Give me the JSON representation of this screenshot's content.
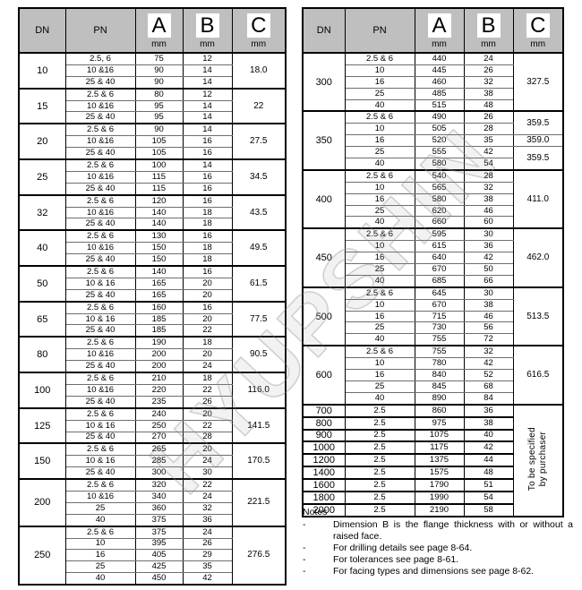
{
  "watermark": "HYUPSHIN",
  "columns": {
    "dn": "DN",
    "pn": "PN",
    "a": "A",
    "b": "B",
    "c": "C",
    "unit": "mm"
  },
  "tables": [
    {
      "name": "left",
      "groups": [
        {
          "dn": "10",
          "rows": [
            [
              "2.5, 6",
              "75",
              "12"
            ],
            [
              "10 &16",
              "90",
              "14"
            ],
            [
              "25 & 40",
              "90",
              "14"
            ]
          ],
          "c": [
            {
              "span": 3,
              "text": "18.0"
            }
          ]
        },
        {
          "dn": "15",
          "rows": [
            [
              "2.5 & 6",
              "80",
              "12"
            ],
            [
              "10 &16",
              "95",
              "14"
            ],
            [
              "25 & 40",
              "95",
              "14"
            ]
          ],
          "c": [
            {
              "span": 3,
              "text": "22"
            }
          ]
        },
        {
          "dn": "20",
          "rows": [
            [
              "2.5 & 6",
              "90",
              "14"
            ],
            [
              "10 &16",
              "105",
              "16"
            ],
            [
              "25 & 40",
              "105",
              "16"
            ]
          ],
          "c": [
            {
              "span": 3,
              "text": "27.5"
            }
          ]
        },
        {
          "dn": "25",
          "rows": [
            [
              "2.5 & 6",
              "100",
              "14"
            ],
            [
              "10 &16",
              "115",
              "16"
            ],
            [
              "25 & 40",
              "115",
              "16"
            ]
          ],
          "c": [
            {
              "span": 3,
              "text": "34.5"
            }
          ]
        },
        {
          "dn": "32",
          "rows": [
            [
              "2.5 & 6",
              "120",
              "16"
            ],
            [
              "10 &16",
              "140",
              "18"
            ],
            [
              "25 & 40",
              "140",
              "18"
            ]
          ],
          "c": [
            {
              "span": 3,
              "text": "43.5"
            }
          ]
        },
        {
          "dn": "40",
          "rows": [
            [
              "2.5 & 6",
              "130",
              "16"
            ],
            [
              "10 &16",
              "150",
              "18"
            ],
            [
              "25 & 40",
              "150",
              "18"
            ]
          ],
          "c": [
            {
              "span": 3,
              "text": "49.5"
            }
          ]
        },
        {
          "dn": "50",
          "rows": [
            [
              "2.5 & 6",
              "140",
              "16"
            ],
            [
              "10 & 16",
              "165",
              "20"
            ],
            [
              "25 & 40",
              "165",
              "20"
            ]
          ],
          "c": [
            {
              "span": 3,
              "text": "61.5"
            }
          ]
        },
        {
          "dn": "65",
          "rows": [
            [
              "2.5 & 6",
              "160",
              "16"
            ],
            [
              "10 & 16",
              "185",
              "20"
            ],
            [
              "25 & 40",
              "185",
              "22"
            ]
          ],
          "c": [
            {
              "span": 3,
              "text": "77.5"
            }
          ]
        },
        {
          "dn": "80",
          "rows": [
            [
              "2.5 & 6",
              "190",
              "18"
            ],
            [
              "10 &16",
              "200",
              "20"
            ],
            [
              "25 & 40",
              "200",
              "24"
            ]
          ],
          "c": [
            {
              "span": 3,
              "text": "90.5"
            }
          ]
        },
        {
          "dn": "100",
          "rows": [
            [
              "2.5 & 6",
              "210",
              "18"
            ],
            [
              "10 &16",
              "220",
              "22"
            ],
            [
              "25 & 40",
              "235",
              "26"
            ]
          ],
          "c": [
            {
              "span": 3,
              "text": "116.0"
            }
          ]
        },
        {
          "dn": "125",
          "rows": [
            [
              "2.5 & 6",
              "240",
              "20"
            ],
            [
              "10 & 16",
              "250",
              "22"
            ],
            [
              "25 & 40",
              "270",
              "28"
            ]
          ],
          "c": [
            {
              "span": 3,
              "text": "141.5"
            }
          ]
        },
        {
          "dn": "150",
          "rows": [
            [
              "2.5 & 6",
              "265",
              "20"
            ],
            [
              "10 & 16",
              "285",
              "24"
            ],
            [
              "25 & 40",
              "300",
              "30"
            ]
          ],
          "c": [
            {
              "span": 3,
              "text": "170.5"
            }
          ]
        },
        {
          "dn": "200",
          "rows": [
            [
              "2.5 & 6",
              "320",
              "22"
            ],
            [
              "10 &16",
              "340",
              "24"
            ],
            [
              "25",
              "360",
              "32"
            ],
            [
              "40",
              "375",
              "36"
            ]
          ],
          "c": [
            {
              "span": 4,
              "text": "221.5"
            }
          ]
        },
        {
          "dn": "250",
          "rows": [
            [
              "2.5 & 6",
              "375",
              "24"
            ],
            [
              "10",
              "395",
              "26"
            ],
            [
              "16",
              "405",
              "29"
            ],
            [
              "25",
              "425",
              "35"
            ],
            [
              "40",
              "450",
              "42"
            ]
          ],
          "c": [
            {
              "span": 5,
              "text": "276.5"
            }
          ]
        }
      ]
    },
    {
      "name": "right",
      "groups": [
        {
          "dn": "300",
          "rows": [
            [
              "2.5 & 6",
              "440",
              "24"
            ],
            [
              "10",
              "445",
              "26"
            ],
            [
              "16",
              "460",
              "32"
            ],
            [
              "25",
              "485",
              "38"
            ],
            [
              "40",
              "515",
              "48"
            ]
          ],
          "c": [
            {
              "span": 5,
              "text": "327.5"
            }
          ]
        },
        {
          "dn": "350",
          "rows": [
            [
              "2.5 & 6",
              "490",
              "26"
            ],
            [
              "10",
              "505",
              "28"
            ],
            [
              "16",
              "520",
              "35"
            ],
            [
              "25",
              "555",
              "42"
            ],
            [
              "40",
              "580",
              "54"
            ]
          ],
          "c": [
            {
              "span": 2,
              "text": "359.5"
            },
            {
              "span": 1,
              "text": "359.0"
            },
            {
              "span": 2,
              "text": "359.5"
            }
          ]
        },
        {
          "dn": "400",
          "rows": [
            [
              "2.5 & 6",
              "540",
              "28"
            ],
            [
              "10",
              "565",
              "32"
            ],
            [
              "16",
              "580",
              "38"
            ],
            [
              "25",
              "620",
              "46"
            ],
            [
              "40",
              "660",
              "60"
            ]
          ],
          "c": [
            {
              "span": 5,
              "text": "411.0"
            }
          ]
        },
        {
          "dn": "450",
          "rows": [
            [
              "2.5 & 6",
              "595",
              "30"
            ],
            [
              "10",
              "615",
              "36"
            ],
            [
              "16",
              "640",
              "42"
            ],
            [
              "25",
              "670",
              "50"
            ],
            [
              "40",
              "685",
              "66"
            ]
          ],
          "c": [
            {
              "span": 5,
              "text": "462.0"
            }
          ]
        },
        {
          "dn": "500",
          "rows": [
            [
              "2.5 & 6",
              "645",
              "30"
            ],
            [
              "10",
              "670",
              "38"
            ],
            [
              "16",
              "715",
              "46"
            ],
            [
              "25",
              "730",
              "56"
            ],
            [
              "40",
              "755",
              "72"
            ]
          ],
          "c": [
            {
              "span": 5,
              "text": "513.5"
            }
          ]
        },
        {
          "dn": "600",
          "rows": [
            [
              "2.5 & 6",
              "755",
              "32"
            ],
            [
              "10",
              "780",
              "42"
            ],
            [
              "16",
              "840",
              "52"
            ],
            [
              "25",
              "845",
              "68"
            ],
            [
              "40",
              "890",
              "84"
            ]
          ],
          "c": [
            {
              "span": 5,
              "text": "616.5"
            }
          ]
        },
        {
          "dn": "700",
          "rows": [
            [
              "2.5",
              "860",
              "36"
            ]
          ],
          "c": [
            {
              "span": 9,
              "text": "To be specified\nby purchaser",
              "rotated": true
            }
          ]
        },
        {
          "dn": "800",
          "rows": [
            [
              "2.5",
              "975",
              "38"
            ]
          ]
        },
        {
          "dn": "900",
          "rows": [
            [
              "2.5",
              "1075",
              "40"
            ]
          ]
        },
        {
          "dn": "1000",
          "rows": [
            [
              "2.5",
              "1175",
              "42"
            ]
          ]
        },
        {
          "dn": "1200",
          "rows": [
            [
              "2.5",
              "1375",
              "44"
            ]
          ]
        },
        {
          "dn": "1400",
          "rows": [
            [
              "2.5",
              "1575",
              "48"
            ]
          ]
        },
        {
          "dn": "1600",
          "rows": [
            [
              "2.5",
              "1790",
              "51"
            ]
          ]
        },
        {
          "dn": "1800",
          "rows": [
            [
              "2.5",
              "1990",
              "54"
            ]
          ]
        },
        {
          "dn": "2000",
          "rows": [
            [
              "2.5",
              "2190",
              "58"
            ]
          ]
        }
      ]
    }
  ],
  "notes": {
    "title": "Notes",
    "dash": "-",
    "items": [
      "Dimension B is the flange thickness with or without a raised face.",
      "For drilling details see page 8-64.",
      "For tolerances see page 8-61.",
      "For facing types and dimensions see page 8-62."
    ]
  }
}
